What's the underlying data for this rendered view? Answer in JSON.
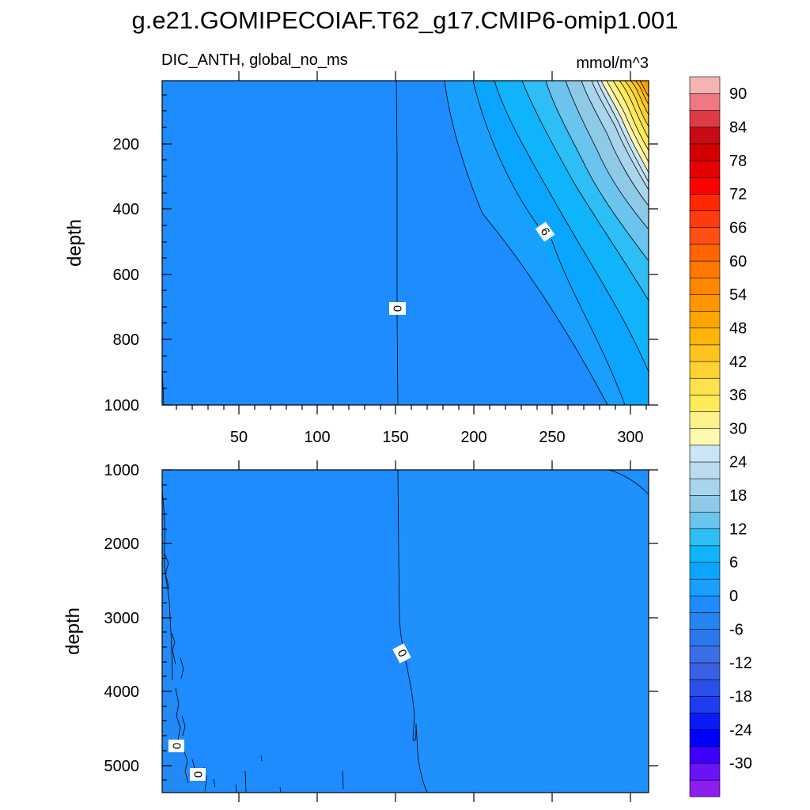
{
  "title": "g.e21.GOMIPECOIAF.T62_g17.CMIP6-omip1.001",
  "chart_data": {
    "type": "heatmap",
    "variable": "DIC_ANTH, global_no_ms",
    "units": "mmol/m^3",
    "xlabel": "",
    "xlim": [
      1,
      310
    ],
    "x_ticks": [
      50,
      100,
      150,
      200,
      250,
      300
    ],
    "colorbar": {
      "levels": [
        -33,
        -30,
        -27,
        -24,
        -21,
        -18,
        -15,
        -12,
        -9,
        -6,
        -3,
        0,
        3,
        6,
        9,
        12,
        15,
        18,
        21,
        24,
        27,
        30,
        33,
        36,
        39,
        42,
        45,
        48,
        51,
        54,
        57,
        60,
        63,
        66,
        69,
        72,
        75,
        78,
        81,
        84,
        87,
        90,
        93
      ],
      "labels": [
        "90",
        "84",
        "78",
        "72",
        "66",
        "60",
        "54",
        "48",
        "42",
        "36",
        "30",
        "24",
        "18",
        "12",
        "6",
        "0",
        "-6",
        "-12",
        "-18",
        "-24",
        "-30"
      ],
      "colors": [
        "#8c1ef0",
        "#6a14f5",
        "#3d00ff",
        "#0000ff",
        "#0a1af5",
        "#1e3cf0",
        "#2850e8",
        "#3a60e2",
        "#3c6ee6",
        "#2b78ed",
        "#2484f2",
        "#1e8cff",
        "#19a0ff",
        "#0aa5ff",
        "#0fb4fa",
        "#2dbef5",
        "#6ac4ee",
        "#8ecae8",
        "#a8d4ee",
        "#bbdcef",
        "#c8e6f5",
        "#fff8b0",
        "#fff28c",
        "#ffeb5a",
        "#ffe14b",
        "#ffd232",
        "#ffc31e",
        "#ffb40a",
        "#ffa500",
        "#ff9600",
        "#ff8700",
        "#ff7800",
        "#ff6400",
        "#ff5014",
        "#ff3c0f",
        "#ff2800",
        "#ff0000",
        "#e60000",
        "#d20000",
        "#c80a14",
        "#dc3c46",
        "#f07882",
        "#f5b4b4"
      ]
    },
    "panels": [
      {
        "name": "upper-depth-panel",
        "ylabel": "depth",
        "ylim": [
          1000,
          0
        ],
        "y_ticks": [
          200,
          400,
          600,
          800,
          1000
        ],
        "contour_labels": [
          {
            "text": "0",
            "x": 150,
            "depth": 700
          },
          {
            "text": "6",
            "x": 245,
            "depth": 470
          }
        ],
        "description": "Anthropogenic DIC increases toward high x and shallow depth, reaching ~57 mmol/m^3 at the surface near x=310"
      },
      {
        "name": "lower-depth-panel",
        "ylabel": "depth",
        "ylim": [
          5400,
          1000
        ],
        "y_ticks": [
          1000,
          2000,
          3000,
          4000,
          5000
        ],
        "contour_labels": [
          {
            "text": "0",
            "x": 155,
            "depth": 3500
          },
          {
            "text": "0",
            "x": 10,
            "depth": 4750
          },
          {
            "text": "0",
            "x": 25,
            "depth": 5120
          }
        ],
        "description": "Values near 0 everywhere; slightly negative west of x=150, slightly positive east"
      }
    ]
  }
}
